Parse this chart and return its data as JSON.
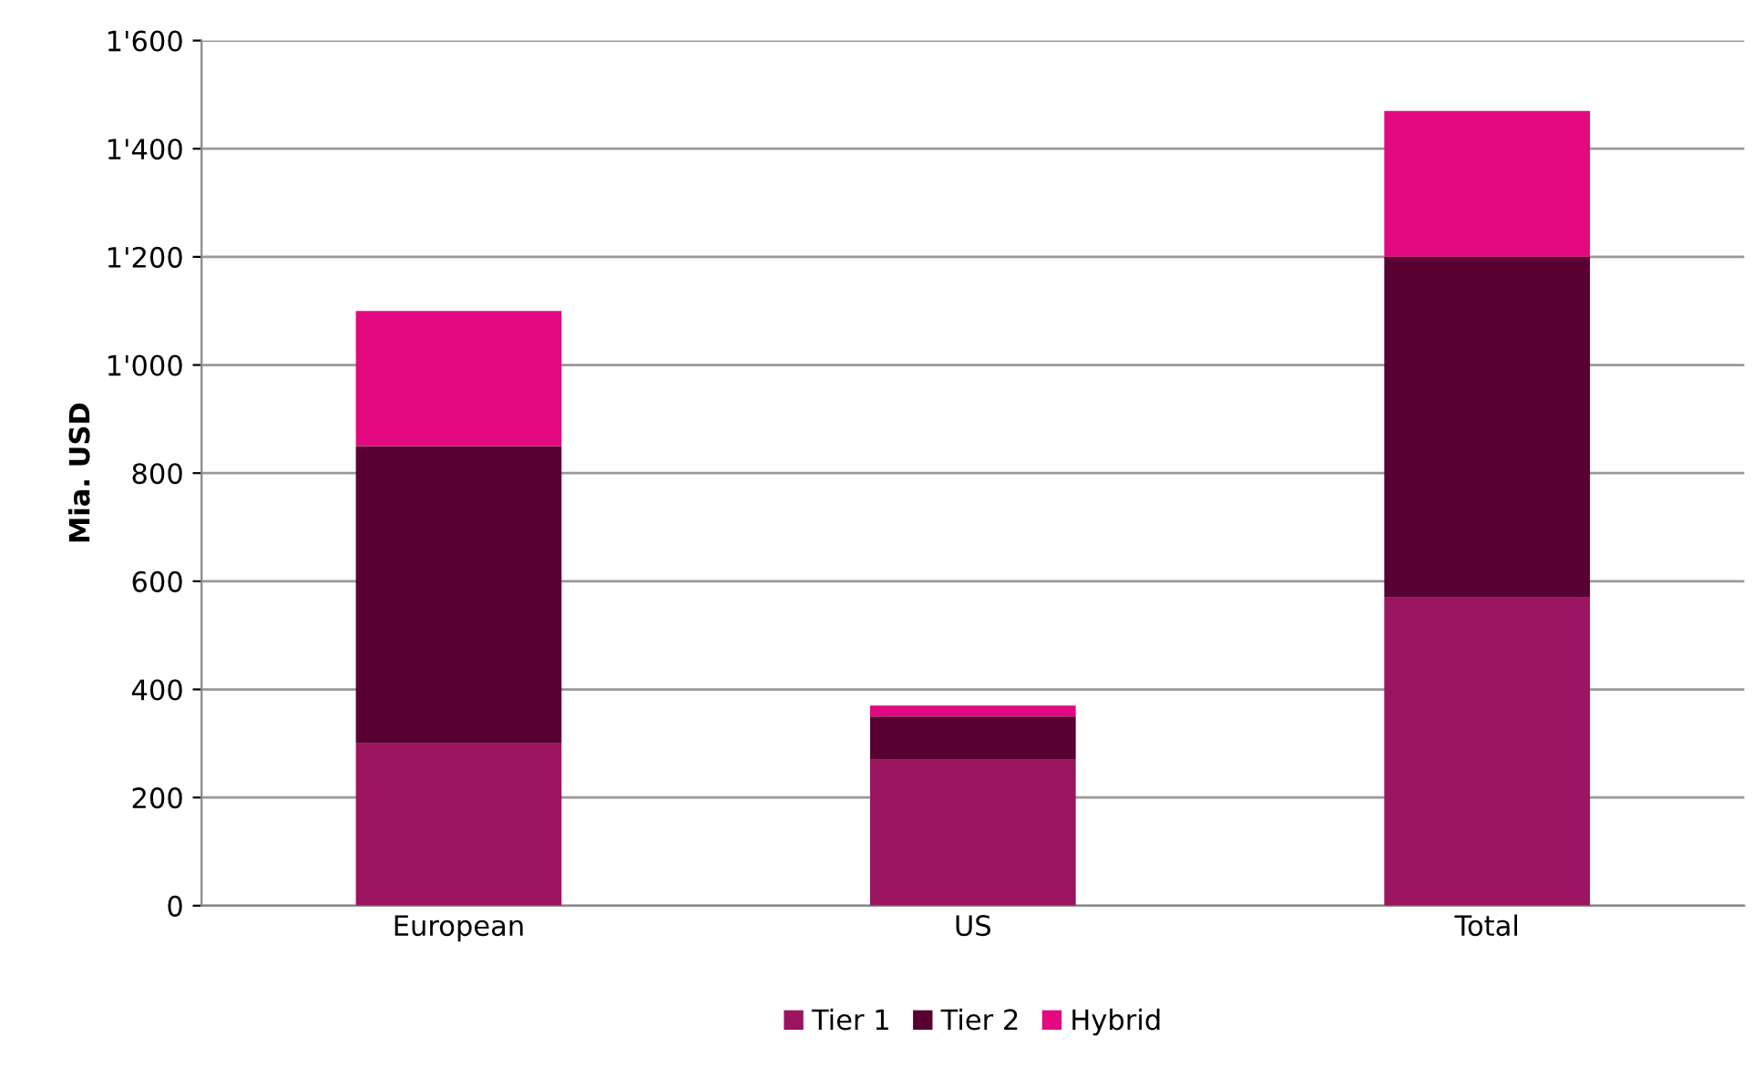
{
  "chart_data": {
    "type": "bar",
    "stacked": true,
    "ylabel": "Mia. USD",
    "categories": [
      "European",
      "US",
      "Total"
    ],
    "series": [
      {
        "name": "Tier 1",
        "color": "#9b1460",
        "values": [
          300,
          270,
          570
        ]
      },
      {
        "name": "Tier 2",
        "color": "#580032",
        "values": [
          550,
          80,
          630
        ]
      },
      {
        "name": "Hybrid",
        "color": "#e3097f",
        "values": [
          250,
          20,
          270
        ]
      }
    ],
    "ylim": [
      0,
      1600
    ],
    "yticks": [
      0,
      200,
      400,
      600,
      800,
      {
        "value": 1000,
        "label": "1'000"
      },
      {
        "value": 1200,
        "label": "1'200"
      },
      {
        "value": 1400,
        "label": "1'400"
      },
      {
        "value": 1600,
        "label": "1'600"
      }
    ],
    "grid": "y",
    "legend": "bottom"
  }
}
